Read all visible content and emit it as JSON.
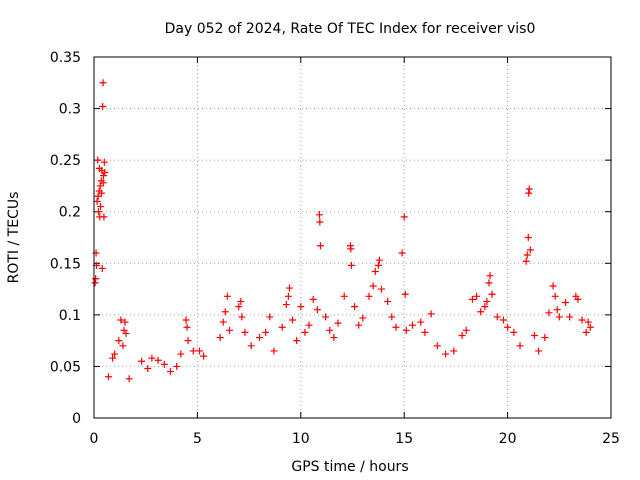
{
  "chart_data": {
    "type": "scatter",
    "title": "Day 052 of 2024, Rate Of TEC Index for receiver vis0",
    "xlabel": "GPS time / hours",
    "ylabel": "ROTI / TECUs",
    "xlim": [
      0,
      25
    ],
    "ylim": [
      0,
      0.35
    ],
    "x_ticks": [
      0,
      5,
      10,
      15,
      20,
      25
    ],
    "x_tick_labels": [
      "0",
      "5",
      "10",
      "15",
      "20",
      "25"
    ],
    "y_ticks": [
      0,
      0.05,
      0.1,
      0.15,
      0.2,
      0.25,
      0.3,
      0.35
    ],
    "y_tick_labels": [
      "0",
      "0.05",
      "0.1",
      "0.15",
      "0.2",
      "0.25",
      "0.3",
      "0.35"
    ],
    "grid": true,
    "marker": "+",
    "color": "#ff0000",
    "series": [
      {
        "name": "ROTI",
        "points": [
          [
            0.05,
            0.131
          ],
          [
            0.08,
            0.135
          ],
          [
            0.1,
            0.16
          ],
          [
            0.12,
            0.148
          ],
          [
            0.15,
            0.21
          ],
          [
            0.18,
            0.25
          ],
          [
            0.2,
            0.215
          ],
          [
            0.22,
            0.2
          ],
          [
            0.25,
            0.22
          ],
          [
            0.28,
            0.195
          ],
          [
            0.3,
            0.225
          ],
          [
            0.32,
            0.205
          ],
          [
            0.35,
            0.23
          ],
          [
            0.38,
            0.24
          ],
          [
            0.4,
            0.145
          ],
          [
            0.42,
            0.302
          ],
          [
            0.44,
            0.325
          ],
          [
            0.46,
            0.235
          ],
          [
            0.48,
            0.195
          ],
          [
            0.5,
            0.248
          ],
          [
            0.52,
            0.238
          ],
          [
            0.45,
            0.228
          ],
          [
            0.36,
            0.218
          ],
          [
            0.26,
            0.242
          ],
          [
            1.3,
            0.095
          ],
          [
            1.45,
            0.085
          ],
          [
            1.5,
            0.093
          ],
          [
            1.55,
            0.082
          ],
          [
            1.2,
            0.075
          ],
          [
            1.4,
            0.07
          ],
          [
            0.9,
            0.058
          ],
          [
            1.0,
            0.062
          ],
          [
            2.3,
            0.055
          ],
          [
            2.6,
            0.048
          ],
          [
            2.8,
            0.058
          ],
          [
            3.1,
            0.056
          ],
          [
            3.4,
            0.052
          ],
          [
            3.7,
            0.045
          ],
          [
            4.0,
            0.05
          ],
          [
            4.2,
            0.062
          ],
          [
            4.45,
            0.095
          ],
          [
            4.5,
            0.088
          ],
          [
            4.55,
            0.075
          ],
          [
            4.8,
            0.065
          ],
          [
            5.1,
            0.065
          ],
          [
            5.3,
            0.06
          ],
          [
            6.1,
            0.078
          ],
          [
            6.25,
            0.093
          ],
          [
            6.35,
            0.103
          ],
          [
            6.45,
            0.118
          ],
          [
            6.55,
            0.085
          ],
          [
            7.0,
            0.108
          ],
          [
            7.1,
            0.113
          ],
          [
            7.15,
            0.098
          ],
          [
            7.3,
            0.083
          ],
          [
            7.6,
            0.07
          ],
          [
            8.0,
            0.078
          ],
          [
            8.3,
            0.083
          ],
          [
            8.5,
            0.098
          ],
          [
            8.7,
            0.065
          ],
          [
            9.1,
            0.088
          ],
          [
            9.3,
            0.11
          ],
          [
            9.4,
            0.118
          ],
          [
            9.45,
            0.126
          ],
          [
            9.6,
            0.095
          ],
          [
            9.8,
            0.075
          ],
          [
            10.0,
            0.108
          ],
          [
            10.2,
            0.083
          ],
          [
            10.4,
            0.09
          ],
          [
            10.6,
            0.115
          ],
          [
            10.8,
            0.105
          ],
          [
            10.9,
            0.197
          ],
          [
            10.92,
            0.19
          ],
          [
            10.95,
            0.167
          ],
          [
            11.2,
            0.098
          ],
          [
            11.4,
            0.085
          ],
          [
            11.6,
            0.078
          ],
          [
            11.8,
            0.092
          ],
          [
            12.1,
            0.118
          ],
          [
            12.4,
            0.167
          ],
          [
            12.42,
            0.164
          ],
          [
            12.45,
            0.148
          ],
          [
            12.6,
            0.108
          ],
          [
            12.8,
            0.09
          ],
          [
            13.0,
            0.097
          ],
          [
            13.3,
            0.118
          ],
          [
            13.5,
            0.128
          ],
          [
            13.6,
            0.142
          ],
          [
            13.75,
            0.148
          ],
          [
            13.8,
            0.153
          ],
          [
            13.9,
            0.125
          ],
          [
            14.2,
            0.113
          ],
          [
            14.4,
            0.098
          ],
          [
            14.6,
            0.088
          ],
          [
            14.9,
            0.16
          ],
          [
            15.0,
            0.195
          ],
          [
            15.05,
            0.12
          ],
          [
            15.1,
            0.085
          ],
          [
            15.4,
            0.09
          ],
          [
            15.8,
            0.093
          ],
          [
            16.0,
            0.083
          ],
          [
            16.3,
            0.101
          ],
          [
            16.6,
            0.07
          ],
          [
            17.0,
            0.062
          ],
          [
            17.4,
            0.065
          ],
          [
            17.8,
            0.08
          ],
          [
            18.0,
            0.085
          ],
          [
            18.3,
            0.115
          ],
          [
            18.5,
            0.118
          ],
          [
            18.7,
            0.103
          ],
          [
            18.9,
            0.108
          ],
          [
            19.0,
            0.113
          ],
          [
            19.1,
            0.131
          ],
          [
            19.15,
            0.138
          ],
          [
            19.25,
            0.12
          ],
          [
            19.5,
            0.098
          ],
          [
            19.8,
            0.095
          ],
          [
            20.0,
            0.088
          ],
          [
            20.3,
            0.083
          ],
          [
            20.6,
            0.07
          ],
          [
            20.9,
            0.152
          ],
          [
            20.95,
            0.158
          ],
          [
            21.0,
            0.175
          ],
          [
            21.02,
            0.218
          ],
          [
            21.05,
            0.222
          ],
          [
            21.1,
            0.163
          ],
          [
            21.3,
            0.08
          ],
          [
            21.5,
            0.065
          ],
          [
            21.8,
            0.078
          ],
          [
            22.0,
            0.102
          ],
          [
            22.2,
            0.128
          ],
          [
            22.3,
            0.118
          ],
          [
            22.4,
            0.105
          ],
          [
            22.5,
            0.098
          ],
          [
            22.8,
            0.112
          ],
          [
            23.0,
            0.098
          ],
          [
            23.3,
            0.118
          ],
          [
            23.4,
            0.115
          ],
          [
            23.6,
            0.095
          ],
          [
            23.8,
            0.083
          ],
          [
            23.9,
            0.093
          ],
          [
            24.0,
            0.088
          ],
          [
            0.7,
            0.04
          ],
          [
            1.7,
            0.038
          ]
        ]
      }
    ]
  }
}
